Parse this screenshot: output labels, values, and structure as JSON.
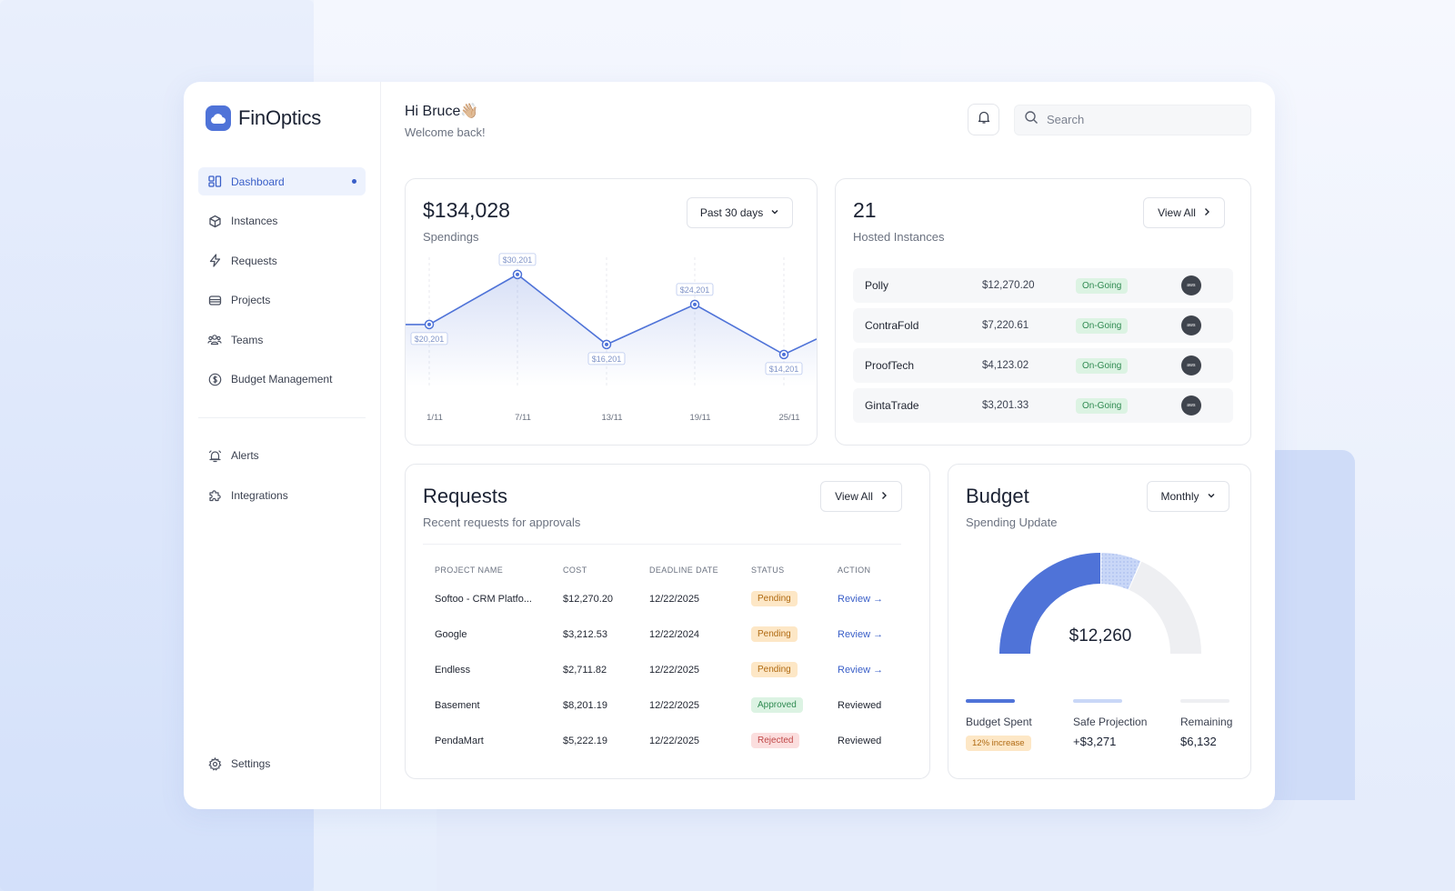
{
  "app": {
    "name": "FinOptics"
  },
  "sidebar": {
    "items": [
      {
        "label": "Dashboard",
        "icon": "dashboard-icon",
        "active": true
      },
      {
        "label": "Instances",
        "icon": "box-icon"
      },
      {
        "label": "Requests",
        "icon": "lightning-icon"
      },
      {
        "label": "Projects",
        "icon": "stack-icon"
      },
      {
        "label": "Teams",
        "icon": "team-icon"
      },
      {
        "label": "Budget Management",
        "icon": "dollar-icon"
      }
    ],
    "secondary": [
      {
        "label": "Alerts",
        "icon": "alarm-icon"
      },
      {
        "label": "Integrations",
        "icon": "puzzle-icon"
      }
    ],
    "settings_label": "Settings"
  },
  "header": {
    "greeting": "Hi Bruce👋🏼",
    "subtitle": "Welcome back!",
    "search_placeholder": "Search"
  },
  "spendings": {
    "amount": "$134,028",
    "label": "Spendings",
    "range_label": "Past 30 days"
  },
  "chart_data": {
    "type": "line",
    "x": [
      "1/11",
      "7/11",
      "13/11",
      "19/11",
      "25/11"
    ],
    "series": [
      {
        "values": [
          20201,
          30201,
          16201,
          24201,
          14201
        ]
      }
    ],
    "data_labels": [
      "$20,201",
      "$30,201",
      "$16,201",
      "$24,201",
      "$14,201"
    ],
    "grid": true,
    "accent": "#4f73d8"
  },
  "hosted": {
    "count": "21",
    "label": "Hosted Instances",
    "view_all": "View All",
    "rows": [
      {
        "name": "Polly",
        "cost": "$12,270.20",
        "status": "On-Going",
        "provider": "aws"
      },
      {
        "name": "ContraFold",
        "cost": "$7,220.61",
        "status": "On-Going",
        "provider": "aws"
      },
      {
        "name": "ProofTech",
        "cost": "$4,123.02",
        "status": "On-Going",
        "provider": "aws"
      },
      {
        "name": "GintaTrade",
        "cost": "$3,201.33",
        "status": "On-Going",
        "provider": "aws"
      }
    ]
  },
  "requests": {
    "title": "Requests",
    "subtitle": "Recent requests for approvals",
    "view_all": "View All",
    "columns": [
      "PROJECT NAME",
      "COST",
      "DEADLINE DATE",
      "STATUS",
      "ACTION"
    ],
    "rows": [
      {
        "project": "Softoo - CRM Platfo...",
        "cost": "$12,270.20",
        "deadline": "12/22/2025",
        "status": "Pending",
        "action": "Review →"
      },
      {
        "project": "Google",
        "cost": "$3,212.53",
        "deadline": "12/22/2024",
        "status": "Pending",
        "action": "Review →"
      },
      {
        "project": "Endless",
        "cost": "$2,711.82",
        "deadline": "12/22/2025",
        "status": "Pending",
        "action": "Review →"
      },
      {
        "project": "Basement",
        "cost": "$8,201.19",
        "deadline": "12/22/2025",
        "status": "Approved",
        "action": "Reviewed"
      },
      {
        "project": "PendaMart",
        "cost": "$5,222.19",
        "deadline": "12/22/2025",
        "status": "Rejected",
        "action": "Reviewed"
      }
    ]
  },
  "budget": {
    "title": "Budget",
    "subtitle": "Spending Update",
    "period": "Monthly",
    "center_value": "$12,260",
    "segments": {
      "spent": 0.5,
      "projection": 0.13,
      "remaining": 0.37
    },
    "legend": [
      {
        "label": "Budget Spent",
        "value": "12% increase",
        "color": "#4f73d8"
      },
      {
        "label": "Safe Projection",
        "value": "+$3,271",
        "color": "#c9d7f7"
      },
      {
        "label": "Remaining",
        "value": "$6,132",
        "color": "#eeeff2"
      }
    ]
  }
}
